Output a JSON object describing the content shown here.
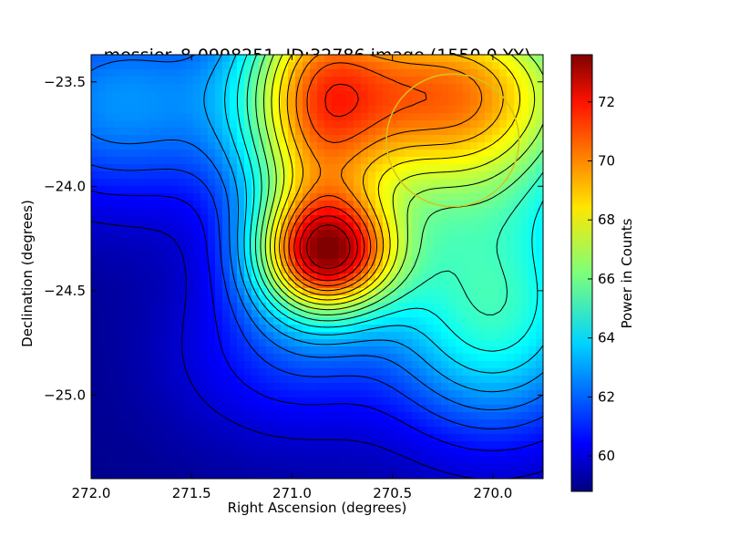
{
  "chart_data": {
    "type": "heatmap",
    "title": "messier_8-0998251, ID:32786 image (1550.0,YY)",
    "xlabel": "Right Ascension (degrees)",
    "ylabel": "Declination (degrees)",
    "colorbar_label": "Power in Counts",
    "xlim": [
      272.0,
      269.75
    ],
    "ylim": [
      -25.4,
      -23.37
    ],
    "x_ticks": [
      272.0,
      271.5,
      271.0,
      270.5,
      270.0
    ],
    "x_tick_labels": [
      "272.0",
      "271.5",
      "271.0",
      "270.5",
      "270.0"
    ],
    "y_ticks": [
      -23.5,
      -24.0,
      -24.5,
      -25.0
    ],
    "y_tick_labels": [
      "−23.5",
      "−24.0",
      "−24.5",
      "−25.0"
    ],
    "colorbar_range": [
      58.8,
      73.6
    ],
    "colorbar_ticks": [
      60,
      62,
      64,
      66,
      68,
      70,
      72
    ],
    "colorbar_tick_labels": [
      "60",
      "62",
      "64",
      "66",
      "68",
      "70",
      "72"
    ],
    "colormap": "jet",
    "peak": {
      "ra": 270.82,
      "dec": -24.33,
      "value": 73.4
    },
    "minimum": {
      "ra": 272.0,
      "dec": -25.0,
      "value": 59.0
    },
    "contour_lines": "black",
    "marker_circle": {
      "ra": 270.2,
      "dec": -23.78,
      "radius_deg": 0.33,
      "color": "#d4c41e"
    }
  }
}
